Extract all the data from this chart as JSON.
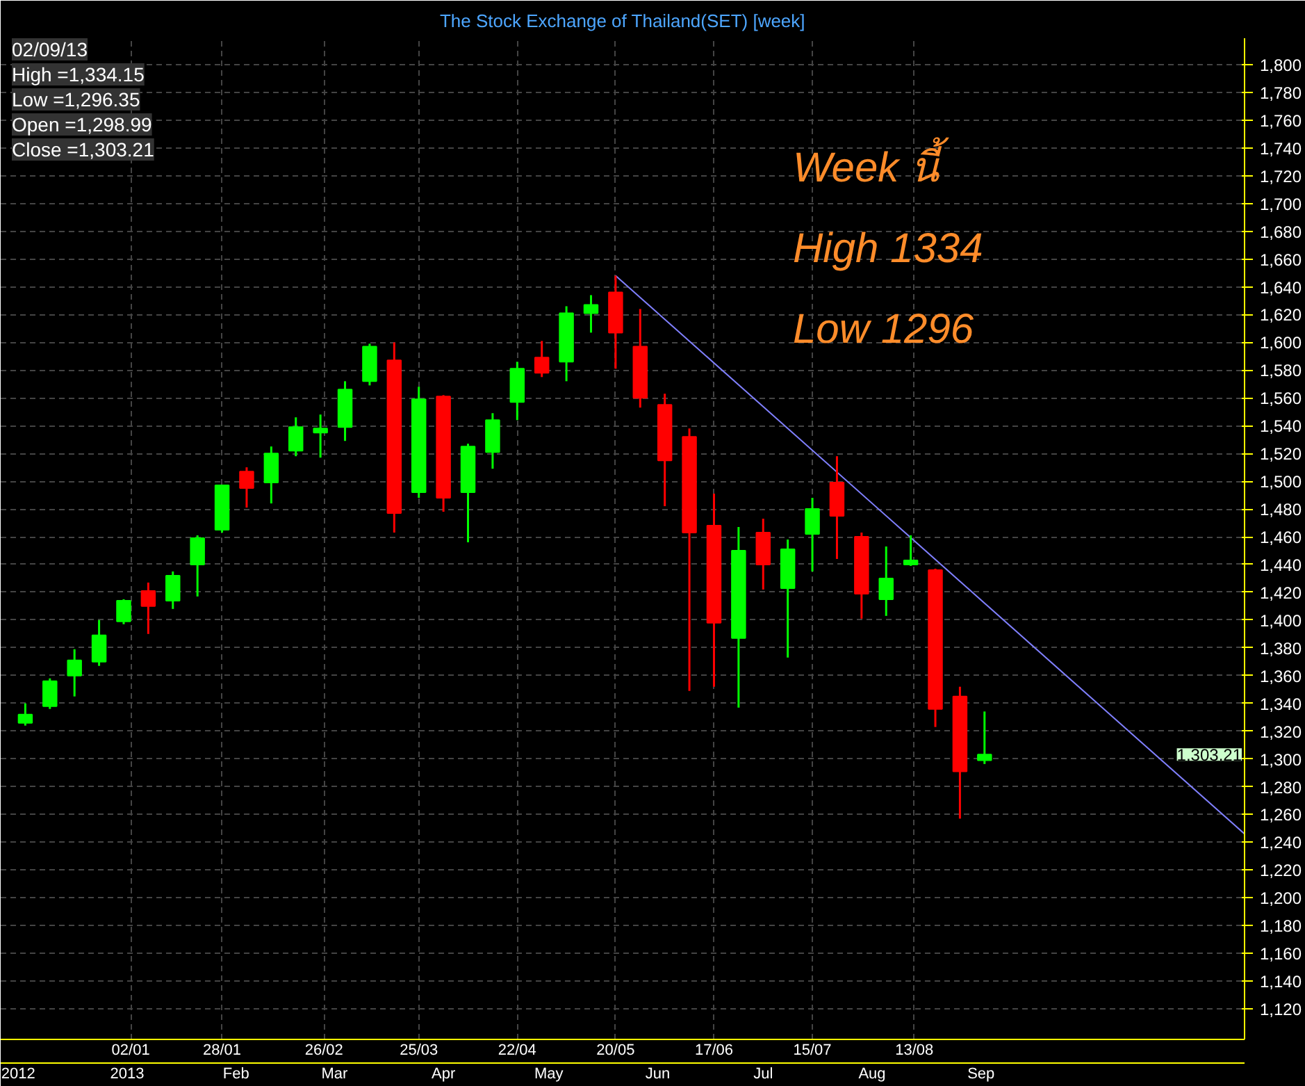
{
  "chart_data": {
    "type": "candlestick",
    "title": "The Stock Exchange of Thailand(SET) [week]",
    "x": [
      "2012-12-03",
      "2012-12-10",
      "2012-12-17",
      "2012-12-24",
      "2012-12-31",
      "2013-01-07",
      "2013-01-14",
      "2013-01-21",
      "2013-01-28",
      "2013-02-04",
      "2013-02-11",
      "2013-02-18",
      "2013-02-25",
      "2013-03-04",
      "2013-03-11",
      "2013-03-18",
      "2013-03-25",
      "2013-04-01",
      "2013-04-08",
      "2013-04-15",
      "2013-04-22",
      "2013-04-29",
      "2013-05-06",
      "2013-05-13",
      "2013-05-20",
      "2013-05-27",
      "2013-06-03",
      "2013-06-10",
      "2013-06-17",
      "2013-06-24",
      "2013-07-01",
      "2013-07-08",
      "2013-07-15",
      "2013-07-22",
      "2013-07-29",
      "2013-08-05",
      "2013-08-12",
      "2013-08-19",
      "2013-08-26",
      "2013-09-02"
    ],
    "ohlc": [
      [
        1326,
        1340,
        1324,
        1332
      ],
      [
        1338,
        1358,
        1336,
        1356
      ],
      [
        1360,
        1379,
        1345,
        1371
      ],
      [
        1370,
        1400,
        1367,
        1389
      ],
      [
        1399,
        1415,
        1397,
        1414
      ],
      [
        1421,
        1427,
        1390,
        1410
      ],
      [
        1414,
        1435,
        1408,
        1432
      ],
      [
        1440,
        1461,
        1417,
        1459
      ],
      [
        1465,
        1497,
        1463,
        1497
      ],
      [
        1507,
        1510,
        1481,
        1495
      ],
      [
        1499,
        1525,
        1484,
        1520
      ],
      [
        1522,
        1546,
        1518,
        1539
      ],
      [
        1535,
        1548,
        1517,
        1538
      ],
      [
        1539,
        1572,
        1529,
        1566
      ],
      [
        1572,
        1599,
        1569,
        1597
      ],
      [
        1587,
        1600,
        1463,
        1477
      ],
      [
        1492,
        1568,
        1488,
        1559
      ],
      [
        1561,
        1562,
        1478,
        1488
      ],
      [
        1492,
        1527,
        1456,
        1525
      ],
      [
        1521,
        1549,
        1509,
        1544
      ],
      [
        1557,
        1586,
        1544,
        1581
      ],
      [
        1589,
        1601,
        1575,
        1578
      ],
      [
        1586,
        1626,
        1572,
        1621
      ],
      [
        1621,
        1634,
        1607,
        1627
      ],
      [
        1636,
        1648,
        1581,
        1607
      ],
      [
        1597,
        1624,
        1553,
        1560
      ],
      [
        1555,
        1563,
        1482,
        1515
      ],
      [
        1532,
        1538,
        1349,
        1463
      ],
      [
        1468,
        1491,
        1352,
        1398
      ],
      [
        1387,
        1467,
        1337,
        1450
      ],
      [
        1463,
        1473,
        1422,
        1440
      ],
      [
        1423,
        1458,
        1373,
        1451
      ],
      [
        1462,
        1488,
        1435,
        1480
      ],
      [
        1499,
        1518,
        1444,
        1475
      ],
      [
        1460,
        1463,
        1401,
        1419
      ],
      [
        1415,
        1453,
        1403,
        1430
      ],
      [
        1440,
        1461,
        1439,
        1443
      ],
      [
        1436,
        1437,
        1323,
        1336
      ],
      [
        1345,
        1352,
        1257,
        1291
      ],
      [
        1298.99,
        1334.15,
        1296.35,
        1303.21
      ]
    ],
    "colors": [
      "#00ff00",
      "#00ff00",
      "#00ff00",
      "#00ff00",
      "#00ff00",
      "#ff0000",
      "#00ff00",
      "#00ff00",
      "#00ff00",
      "#ff0000",
      "#00ff00",
      "#00ff00",
      "#00ff00",
      "#00ff00",
      "#00ff00",
      "#ff0000",
      "#00ff00",
      "#ff0000",
      "#00ff00",
      "#00ff00",
      "#00ff00",
      "#ff0000",
      "#00ff00",
      "#00ff00",
      "#ff0000",
      "#ff0000",
      "#ff0000",
      "#ff0000",
      "#ff0000",
      "#00ff00",
      "#ff0000",
      "#00ff00",
      "#00ff00",
      "#ff0000",
      "#ff0000",
      "#00ff00",
      "#00ff00",
      "#ff0000",
      "#ff0000",
      "#00ff00"
    ],
    "series": [
      {
        "type": "line",
        "color": "#8080ff",
        "x": [
          "2013-05-20",
          "2013-11-15"
        ],
        "values": [
          1648,
          1246
        ]
      }
    ],
    "xlim": [
      "2012-11-26",
      "2013-11-15"
    ],
    "x2lim": [
      "2012-11-26",
      "2013-11-15"
    ],
    "xticks": [
      {
        "value": "2013-01-02",
        "label": "02/01"
      },
      {
        "value": "2013-01-28",
        "label": "28/01"
      },
      {
        "value": "2013-02-26",
        "label": "26/02"
      },
      {
        "value": "2013-03-25",
        "label": "25/03"
      },
      {
        "value": "2013-04-22",
        "label": "22/04"
      },
      {
        "value": "2013-05-20",
        "label": "20/05"
      },
      {
        "value": "2013-06-17",
        "label": "17/06"
      },
      {
        "value": "2013-07-15",
        "label": "15/07"
      },
      {
        "value": "2013-08-13",
        "label": "13/08"
      }
    ],
    "x2ticks": [
      {
        "value": "2012-12-01",
        "label": "2012"
      },
      {
        "value": "2013-01-01",
        "label": "2013"
      },
      {
        "value": "2013-02-01",
        "label": "Feb"
      },
      {
        "value": "2013-03-01",
        "label": "Mar"
      },
      {
        "value": "2013-04-01",
        "label": "Apr"
      },
      {
        "value": "2013-05-01",
        "label": "May"
      },
      {
        "value": "2013-06-01",
        "label": "Jun"
      },
      {
        "value": "2013-07-01",
        "label": "Jul"
      },
      {
        "value": "2013-08-01",
        "label": "Aug"
      },
      {
        "value": "2013-09-01",
        "label": "Sep"
      }
    ],
    "ylim": [
      1098,
      1819
    ],
    "yticks": [
      {
        "value": 1120,
        "label": "1,120"
      },
      {
        "value": 1140,
        "label": "1,140"
      },
      {
        "value": 1160,
        "label": "1,160"
      },
      {
        "value": 1180,
        "label": "1,180"
      },
      {
        "value": 1200,
        "label": "1,200"
      },
      {
        "value": 1220,
        "label": "1,220"
      },
      {
        "value": 1240,
        "label": "1,240"
      },
      {
        "value": 1260,
        "label": "1,260"
      },
      {
        "value": 1280,
        "label": "1,280"
      },
      {
        "value": 1300,
        "label": "1,300"
      },
      {
        "value": 1320,
        "label": "1,320"
      },
      {
        "value": 1340,
        "label": "1,340"
      },
      {
        "value": 1360,
        "label": "1,360"
      },
      {
        "value": 1380,
        "label": "1,380"
      },
      {
        "value": 1400,
        "label": "1,400"
      },
      {
        "value": 1420,
        "label": "1,420"
      },
      {
        "value": 1440,
        "label": "1,440"
      },
      {
        "value": 1460,
        "label": "1,460"
      },
      {
        "value": 1480,
        "label": "1,480"
      },
      {
        "value": 1500,
        "label": "1,500"
      },
      {
        "value": 1520,
        "label": "1,520"
      },
      {
        "value": 1540,
        "label": "1,540"
      },
      {
        "value": 1560,
        "label": "1,560"
      },
      {
        "value": 1580,
        "label": "1,580"
      },
      {
        "value": 1600,
        "label": "1,600"
      },
      {
        "value": 1620,
        "label": "1,620"
      },
      {
        "value": 1640,
        "label": "1,640"
      },
      {
        "value": 1660,
        "label": "1,660"
      },
      {
        "value": 1680,
        "label": "1,680"
      },
      {
        "value": 1700,
        "label": "1,700"
      },
      {
        "value": 1720,
        "label": "1,720"
      },
      {
        "value": 1740,
        "label": "1,740"
      },
      {
        "value": 1760,
        "label": "1,760"
      },
      {
        "value": 1780,
        "label": "1,780"
      },
      {
        "value": 1800,
        "label": "1,800"
      }
    ],
    "grid": true,
    "annotations": [
      "02/09/13",
      "High =1,334.15",
      "Low =1,296.35",
      "Open =1,298.99",
      "Close =1,303.21",
      "Week นี้",
      "High 1334",
      "Low 1296",
      "1,303.21"
    ]
  }
}
